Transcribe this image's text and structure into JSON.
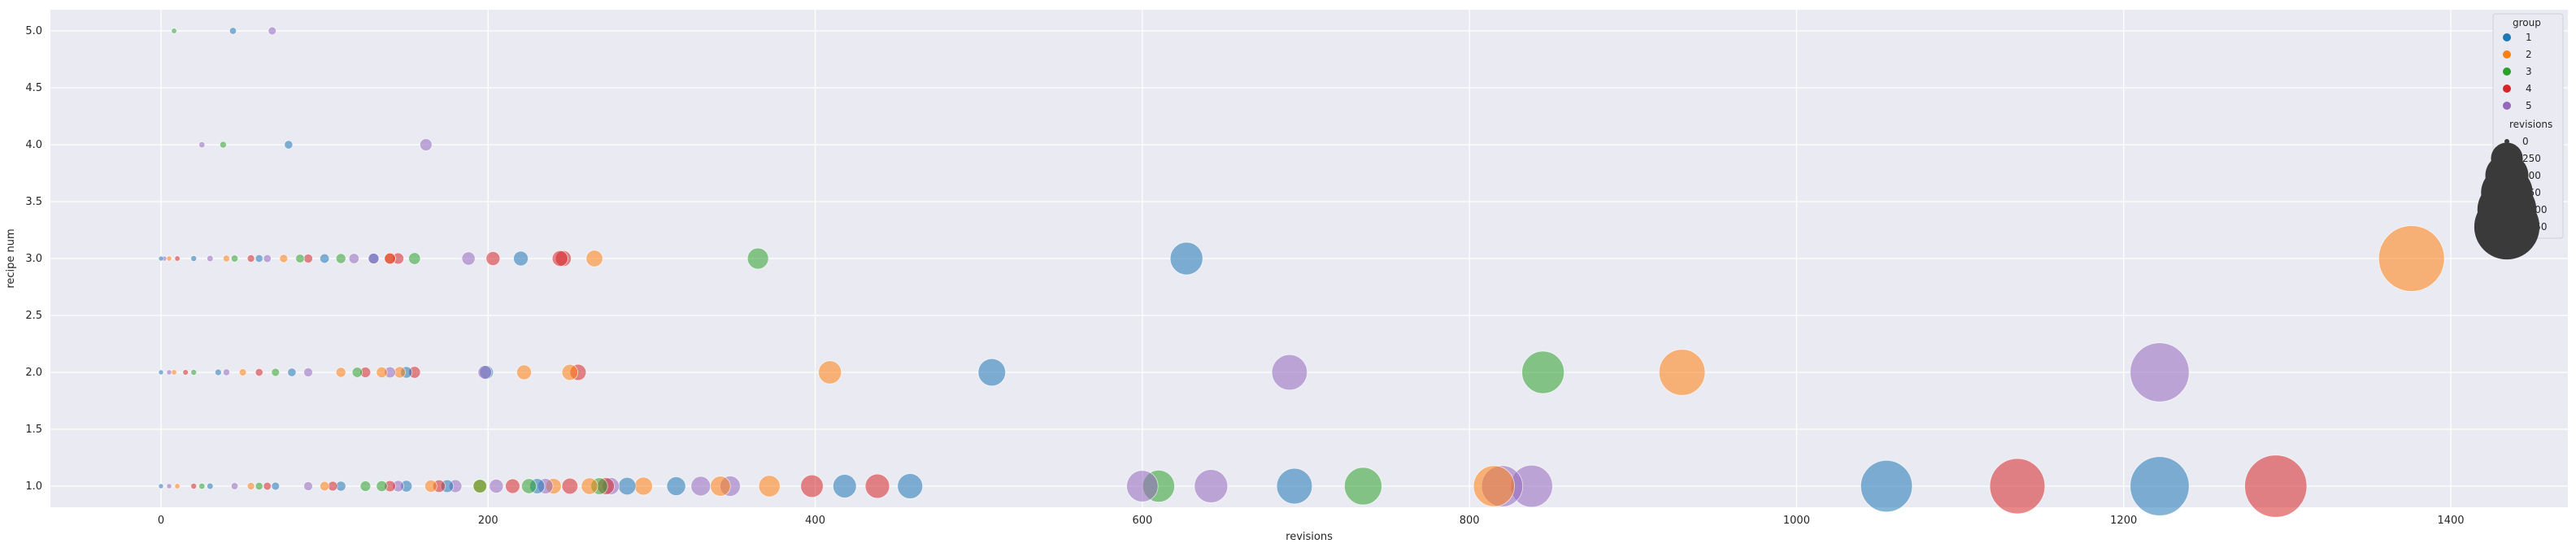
{
  "chart_data": {
    "type": "scatter",
    "title": "",
    "xlabel": "revisions",
    "ylabel": "recipe num",
    "xlim": [
      -85,
      1445
    ],
    "ylim": [
      0.8,
      5.2
    ],
    "x_ticks": [
      0,
      200,
      400,
      600,
      800,
      1000,
      1200,
      1400
    ],
    "x_tick_labels": [
      "0",
      "200",
      "400",
      "600",
      "800",
      "1000",
      "1200",
      "1400"
    ],
    "y_ticks": [
      1.0,
      1.5,
      2.0,
      2.5,
      3.0,
      3.5,
      4.0,
      4.5,
      5.0
    ],
    "y_tick_labels": [
      "1.0",
      "1.5",
      "2.0",
      "2.5",
      "3.0",
      "3.5",
      "4.0",
      "4.5",
      "5.0"
    ],
    "grid": true,
    "background": "#eaeaf2",
    "point_alpha": 0.55,
    "size_range": [
      0,
      1380
    ],
    "hue_legend": {
      "title": "group",
      "placement": "top-right",
      "entries": [
        {
          "label": "1",
          "color": "#1f77b4"
        },
        {
          "label": "2",
          "color": "#ff7f0e"
        },
        {
          "label": "3",
          "color": "#2ca02c"
        },
        {
          "label": "4",
          "color": "#d62728"
        },
        {
          "label": "5",
          "color": "#9467bd"
        }
      ]
    },
    "size_legend": {
      "title": "revisions",
      "color": "#3a3a3a",
      "entries": [
        {
          "label": "0",
          "value": 0
        },
        {
          "label": "250",
          "value": 250
        },
        {
          "label": "500",
          "value": 500
        },
        {
          "label": "750",
          "value": 750
        },
        {
          "label": "1000",
          "value": 1000
        },
        {
          "label": "1250",
          "value": 1250
        }
      ]
    },
    "series": [
      {
        "name": "1",
        "color": "#1f77b4",
        "points": [
          [
            44,
            5
          ],
          [
            78,
            4
          ],
          [
            0,
            3
          ],
          [
            20,
            3
          ],
          [
            60,
            3
          ],
          [
            100,
            3
          ],
          [
            130,
            3
          ],
          [
            220,
            3
          ],
          [
            627,
            3
          ],
          [
            0,
            2
          ],
          [
            35,
            2
          ],
          [
            80,
            2
          ],
          [
            150,
            2
          ],
          [
            199,
            2
          ],
          [
            508,
            2
          ],
          [
            0,
            1
          ],
          [
            30,
            1
          ],
          [
            70,
            1
          ],
          [
            110,
            1
          ],
          [
            150,
            1
          ],
          [
            175,
            1
          ],
          [
            230,
            1
          ],
          [
            285,
            1
          ],
          [
            315,
            1
          ],
          [
            418,
            1
          ],
          [
            458,
            1
          ],
          [
            693,
            1
          ],
          [
            1055,
            1
          ],
          [
            1222,
            1
          ]
        ]
      },
      {
        "name": "2",
        "color": "#ff7f0e",
        "points": [
          [
            5,
            3
          ],
          [
            40,
            3
          ],
          [
            75,
            3
          ],
          [
            140,
            3
          ],
          [
            265,
            3
          ],
          [
            1376,
            3
          ],
          [
            8,
            2
          ],
          [
            50,
            2
          ],
          [
            110,
            2
          ],
          [
            135,
            2
          ],
          [
            146,
            2
          ],
          [
            222,
            2
          ],
          [
            250,
            2
          ],
          [
            409,
            2
          ],
          [
            930,
            2
          ],
          [
            10,
            1
          ],
          [
            55,
            1
          ],
          [
            100,
            1
          ],
          [
            165,
            1
          ],
          [
            195,
            1
          ],
          [
            240,
            1
          ],
          [
            262,
            1
          ],
          [
            295,
            1
          ],
          [
            342,
            1
          ],
          [
            372,
            1
          ],
          [
            815,
            1
          ]
        ]
      },
      {
        "name": "3",
        "color": "#2ca02c",
        "points": [
          [
            8,
            5
          ],
          [
            38,
            4
          ],
          [
            45,
            3
          ],
          [
            85,
            3
          ],
          [
            110,
            3
          ],
          [
            155,
            3
          ],
          [
            365,
            3
          ],
          [
            20,
            2
          ],
          [
            70,
            2
          ],
          [
            120,
            2
          ],
          [
            25,
            1
          ],
          [
            60,
            1
          ],
          [
            125,
            1
          ],
          [
            135,
            1
          ],
          [
            195,
            1
          ],
          [
            225,
            1
          ],
          [
            268,
            1
          ],
          [
            610,
            1
          ],
          [
            735,
            1
          ],
          [
            845,
            2
          ]
        ]
      },
      {
        "name": "4",
        "color": "#d62728",
        "points": [
          [
            10,
            3
          ],
          [
            55,
            3
          ],
          [
            90,
            3
          ],
          [
            140,
            3
          ],
          [
            145,
            3
          ],
          [
            203,
            3
          ],
          [
            244,
            3
          ],
          [
            246,
            3
          ],
          [
            15,
            2
          ],
          [
            60,
            2
          ],
          [
            125,
            2
          ],
          [
            155,
            2
          ],
          [
            255,
            2
          ],
          [
            20,
            1
          ],
          [
            65,
            1
          ],
          [
            105,
            1
          ],
          [
            140,
            1
          ],
          [
            170,
            1
          ],
          [
            215,
            1
          ],
          [
            250,
            1
          ],
          [
            272,
            1
          ],
          [
            398,
            1
          ],
          [
            438,
            1
          ],
          [
            1135,
            1
          ],
          [
            1293,
            1
          ]
        ]
      },
      {
        "name": "5",
        "color": "#9467bd",
        "points": [
          [
            68,
            5
          ],
          [
            25,
            4
          ],
          [
            162,
            4
          ],
          [
            2,
            3
          ],
          [
            30,
            3
          ],
          [
            65,
            3
          ],
          [
            118,
            3
          ],
          [
            130,
            3
          ],
          [
            188,
            3
          ],
          [
            5,
            2
          ],
          [
            40,
            2
          ],
          [
            90,
            2
          ],
          [
            140,
            2
          ],
          [
            198,
            2
          ],
          [
            690,
            2
          ],
          [
            1222,
            2
          ],
          [
            5,
            1
          ],
          [
            45,
            1
          ],
          [
            90,
            1
          ],
          [
            145,
            1
          ],
          [
            180,
            1
          ],
          [
            205,
            1
          ],
          [
            235,
            1
          ],
          [
            275,
            1
          ],
          [
            330,
            1
          ],
          [
            348,
            1
          ],
          [
            600,
            1
          ],
          [
            642,
            1
          ],
          [
            820,
            1
          ],
          [
            838,
            1
          ]
        ]
      }
    ]
  }
}
